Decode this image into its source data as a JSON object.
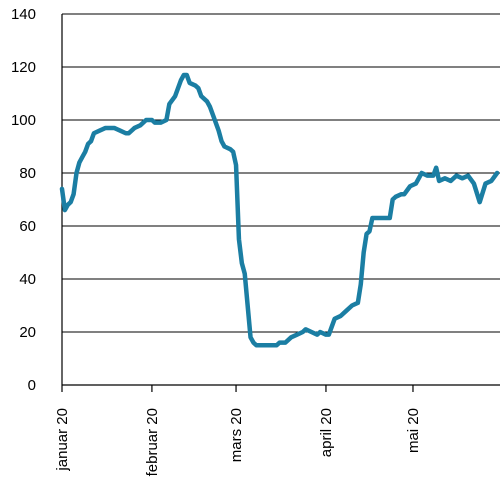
{
  "chart_data": {
    "type": "line",
    "title": "",
    "xlabel": "",
    "ylabel": "",
    "ylim": [
      0,
      140
    ],
    "yticks": [
      0,
      20,
      40,
      60,
      80,
      100,
      120,
      140
    ],
    "grid": "horizontal",
    "legend": "none",
    "x_tick_labels": [
      "januar 20",
      "februar 20",
      "mars 20",
      "april 20",
      "mai 20"
    ],
    "x_tick_dates": [
      "2020-01-01",
      "2020-02-01",
      "2020-03-01",
      "2020-04-01",
      "2020-05-01"
    ],
    "x_range": [
      "2020-01-01",
      "2020-05-31"
    ],
    "series": [
      {
        "color": "#1b7ea3",
        "points": [
          [
            "2020-01-01",
            74
          ],
          [
            "2020-01-02",
            66
          ],
          [
            "2020-01-03",
            68
          ],
          [
            "2020-01-04",
            69
          ],
          [
            "2020-01-05",
            72
          ],
          [
            "2020-01-06",
            80
          ],
          [
            "2020-01-07",
            84
          ],
          [
            "2020-01-08",
            86
          ],
          [
            "2020-01-09",
            88
          ],
          [
            "2020-01-10",
            91
          ],
          [
            "2020-01-11",
            92
          ],
          [
            "2020-01-12",
            95
          ],
          [
            "2020-01-14",
            96
          ],
          [
            "2020-01-16",
            97
          ],
          [
            "2020-01-19",
            97
          ],
          [
            "2020-01-21",
            96
          ],
          [
            "2020-01-23",
            95
          ],
          [
            "2020-01-24",
            95
          ],
          [
            "2020-01-26",
            97
          ],
          [
            "2020-01-28",
            98
          ],
          [
            "2020-01-30",
            100
          ],
          [
            "2020-02-01",
            100
          ],
          [
            "2020-02-02",
            99
          ],
          [
            "2020-02-04",
            99
          ],
          [
            "2020-02-06",
            100
          ],
          [
            "2020-02-07",
            106
          ],
          [
            "2020-02-09",
            109
          ],
          [
            "2020-02-11",
            115
          ],
          [
            "2020-02-12",
            117
          ],
          [
            "2020-02-13",
            117
          ],
          [
            "2020-02-14",
            114
          ],
          [
            "2020-02-16",
            113
          ],
          [
            "2020-02-17",
            112
          ],
          [
            "2020-02-18",
            109
          ],
          [
            "2020-02-20",
            107
          ],
          [
            "2020-02-21",
            105
          ],
          [
            "2020-02-23",
            99
          ],
          [
            "2020-02-24",
            96
          ],
          [
            "2020-02-25",
            92
          ],
          [
            "2020-02-26",
            90
          ],
          [
            "2020-02-28",
            89
          ],
          [
            "2020-02-29",
            88
          ],
          [
            "2020-03-01",
            83
          ],
          [
            "2020-03-02",
            55
          ],
          [
            "2020-03-03",
            46
          ],
          [
            "2020-03-04",
            42
          ],
          [
            "2020-03-05",
            30
          ],
          [
            "2020-03-06",
            18
          ],
          [
            "2020-03-07",
            16
          ],
          [
            "2020-03-08",
            15
          ],
          [
            "2020-03-10",
            15
          ],
          [
            "2020-03-12",
            15
          ],
          [
            "2020-03-15",
            15
          ],
          [
            "2020-03-16",
            16
          ],
          [
            "2020-03-18",
            16
          ],
          [
            "2020-03-20",
            18
          ],
          [
            "2020-03-22",
            19
          ],
          [
            "2020-03-24",
            20
          ],
          [
            "2020-03-25",
            21
          ],
          [
            "2020-03-27",
            20
          ],
          [
            "2020-03-29",
            19
          ],
          [
            "2020-03-30",
            20
          ],
          [
            "2020-04-01",
            19
          ],
          [
            "2020-04-02",
            19
          ],
          [
            "2020-04-03",
            22
          ],
          [
            "2020-04-04",
            25
          ],
          [
            "2020-04-06",
            26
          ],
          [
            "2020-04-08",
            28
          ],
          [
            "2020-04-10",
            30
          ],
          [
            "2020-04-12",
            31
          ],
          [
            "2020-04-13",
            38
          ],
          [
            "2020-04-14",
            50
          ],
          [
            "2020-04-15",
            57
          ],
          [
            "2020-04-16",
            58
          ],
          [
            "2020-04-17",
            63
          ],
          [
            "2020-04-19",
            63
          ],
          [
            "2020-04-21",
            63
          ],
          [
            "2020-04-23",
            63
          ],
          [
            "2020-04-24",
            70
          ],
          [
            "2020-04-25",
            71
          ],
          [
            "2020-04-27",
            72
          ],
          [
            "2020-04-28",
            72
          ],
          [
            "2020-04-30",
            75
          ],
          [
            "2020-05-02",
            76
          ],
          [
            "2020-05-04",
            80
          ],
          [
            "2020-05-06",
            79
          ],
          [
            "2020-05-08",
            79
          ],
          [
            "2020-05-09",
            82
          ],
          [
            "2020-05-10",
            77
          ],
          [
            "2020-05-12",
            78
          ],
          [
            "2020-05-14",
            77
          ],
          [
            "2020-05-16",
            79
          ],
          [
            "2020-05-18",
            78
          ],
          [
            "2020-05-20",
            79
          ],
          [
            "2020-05-22",
            76
          ],
          [
            "2020-05-24",
            69
          ],
          [
            "2020-05-26",
            76
          ],
          [
            "2020-05-28",
            77
          ],
          [
            "2020-05-30",
            80
          ]
        ]
      }
    ]
  }
}
